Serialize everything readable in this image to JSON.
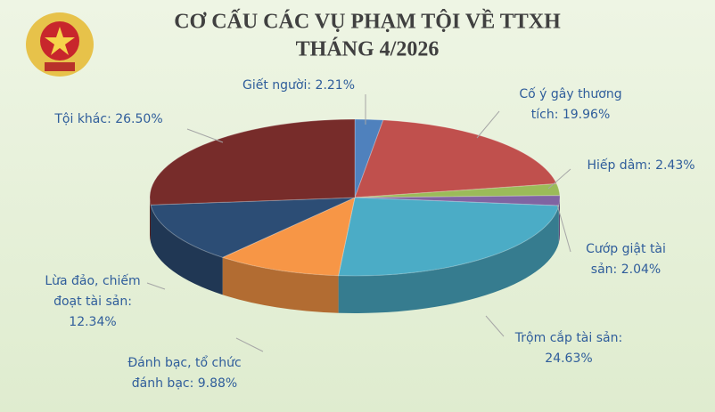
{
  "chart_data": {
    "type": "pie3d",
    "title": [
      "CƠ CẤU CÁC VỤ PHẠM TỘI VỀ TTXH",
      "THÁNG 4/2026"
    ],
    "values": [
      2.21,
      19.96,
      2.43,
      2.04,
      24.63,
      9.88,
      12.34,
      26.5
    ],
    "value_labels": [
      [
        "Giết người: 2.21%"
      ],
      [
        "Cố ý gây thương",
        "tích: 19.96%"
      ],
      [
        "Hiếp dâm: 2.43%"
      ],
      [
        "Cướp giật tài",
        "sản: 2.04%"
      ],
      [
        "Trộm cắp tài sản:",
        "24.63%"
      ],
      [
        "Đánh bạc, tổ chức",
        "đánh bạc: 9.88%"
      ],
      [
        "Lừa đảo, chiếm",
        "đoạt tài sản:",
        "12.34%"
      ],
      [
        "Tội khác: 26.50%"
      ]
    ],
    "colors": [
      "#4f81bd",
      "#c0504d",
      "#9bbb59",
      "#8064a2",
      "#4bacc6",
      "#f79646",
      "#2c4d75",
      "#772c2a"
    ]
  }
}
